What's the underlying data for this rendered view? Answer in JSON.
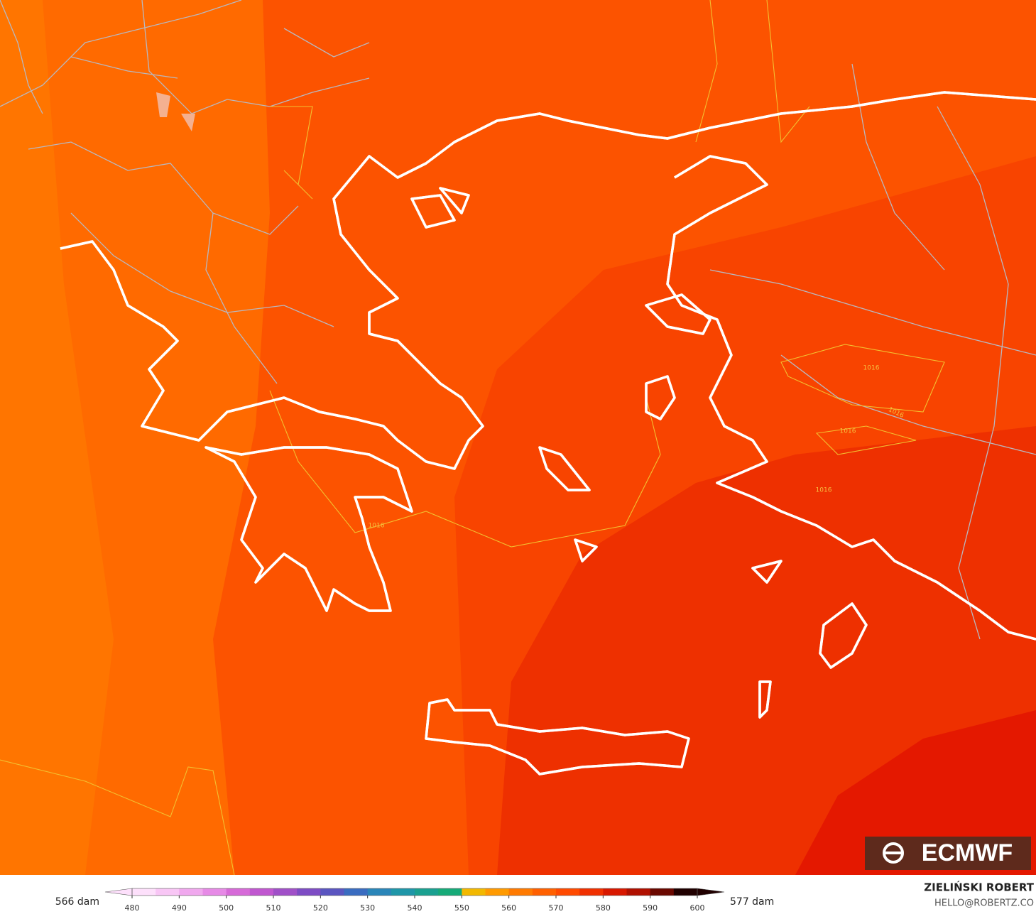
{
  "map": {
    "contour_labels": [
      "1016",
      "1016",
      "1016",
      "1016",
      "1016"
    ],
    "logo": "ECMWF"
  },
  "colorbar": {
    "min_label": "566 dam",
    "max_label": "577 dam",
    "ticks": [
      480,
      490,
      500,
      510,
      520,
      530,
      540,
      550,
      560,
      570,
      580,
      590,
      600
    ],
    "colors": [
      "#fde0fb",
      "#f8c6f5",
      "#f0a8ee",
      "#e68ae6",
      "#d66ad8",
      "#c057d0",
      "#a050c8",
      "#7d4cc4",
      "#5a55c0",
      "#3a6cc0",
      "#2a85b8",
      "#1f96a8",
      "#1aa090",
      "#16aa78",
      "#f2b800",
      "#ff9a00",
      "#ff7a00",
      "#ff6000",
      "#ff4a00",
      "#f03000",
      "#d81800",
      "#b01000",
      "#6a0800",
      "#200000"
    ]
  },
  "credits": {
    "author": "ZIELIŃSKI ROBERT",
    "contact": "HELLO@ROBERTZ.CO"
  }
}
